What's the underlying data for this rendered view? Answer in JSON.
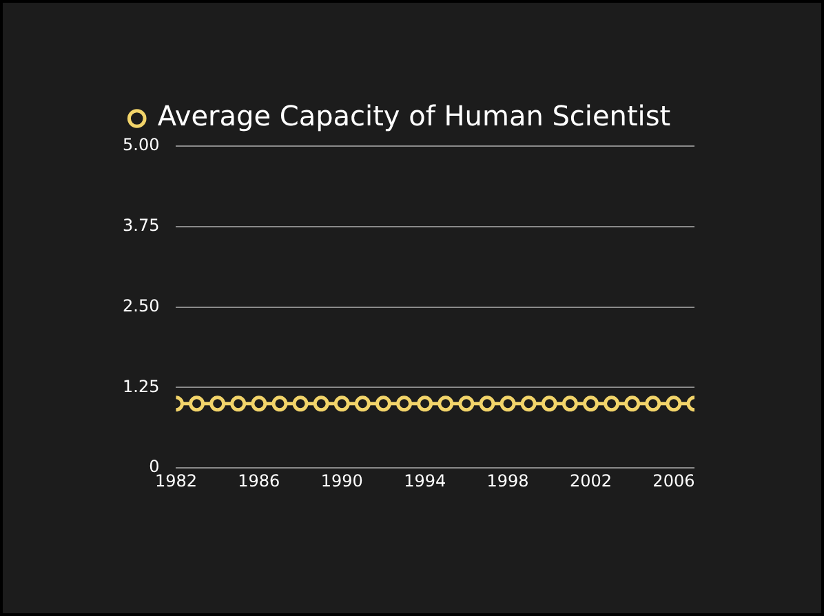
{
  "chart_data": {
    "type": "line",
    "x": [
      1982,
      1983,
      1984,
      1985,
      1986,
      1987,
      1988,
      1989,
      1990,
      1991,
      1992,
      1993,
      1994,
      1995,
      1996,
      1997,
      1998,
      1999,
      2000,
      2001,
      2002,
      2003,
      2004,
      2005,
      2006,
      2007
    ],
    "series": [
      {
        "name": "Average Capacity of Human Scientist",
        "color": "#f2d46a",
        "values": [
          1,
          1,
          1,
          1,
          1,
          1,
          1,
          1,
          1,
          1,
          1,
          1,
          1,
          1,
          1,
          1,
          1,
          1,
          1,
          1,
          1,
          1,
          1,
          1,
          1,
          1
        ]
      }
    ],
    "xlim": [
      1982,
      2007
    ],
    "xticks": [
      1982,
      1986,
      1990,
      1994,
      1998,
      2002,
      2006
    ],
    "ylim": [
      0,
      5
    ],
    "yticks": [
      0,
      1.25,
      {
        "value": 2.5,
        "label": "2.50"
      },
      3.75,
      {
        "value": 5,
        "label": "5.00"
      }
    ],
    "grid": "y",
    "legend": "top",
    "marker": "circle",
    "line_style": "solid"
  }
}
